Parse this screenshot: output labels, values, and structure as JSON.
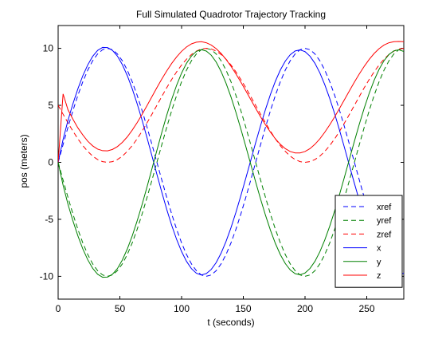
{
  "chart_data": {
    "type": "line",
    "title": "Full Simulated Quadrotor Trajectory Tracking",
    "xlabel": "t (seconds)",
    "ylabel": "pos (meters)",
    "xlim": [
      0,
      280
    ],
    "ylim": [
      -12,
      12
    ],
    "xticks": [
      0,
      50,
      100,
      150,
      200,
      250
    ],
    "yticks": [
      -10,
      -5,
      0,
      5,
      10
    ],
    "xtick_labels": [
      "0",
      "50",
      "100",
      "150",
      "200",
      "250"
    ],
    "ytick_labels": [
      "-10",
      "-5",
      "0",
      "5",
      "10"
    ],
    "grid": false,
    "legend_position": "bottom-right",
    "x": [
      0,
      4,
      8,
      12,
      16,
      20,
      24,
      28,
      32,
      36,
      40,
      44,
      48,
      52,
      56,
      60,
      64,
      68,
      72,
      76,
      80,
      84,
      88,
      92,
      96,
      100,
      104,
      108,
      112,
      116,
      120,
      124,
      128,
      132,
      136,
      140,
      144,
      148,
      152,
      156,
      160,
      164,
      168,
      172,
      176,
      180,
      184,
      188,
      192,
      196,
      200,
      204,
      208,
      212,
      216,
      220,
      224,
      228,
      232,
      236,
      240,
      244,
      248,
      252,
      256,
      260,
      264,
      268,
      272,
      276,
      280
    ],
    "series": [
      {
        "name": "xref",
        "color": "#0000ff",
        "dash": "dashed",
        "values": [
          0.0,
          1.56,
          3.09,
          4.54,
          5.88,
          7.07,
          8.09,
          8.91,
          9.51,
          9.88,
          10.0,
          9.88,
          9.51,
          8.91,
          8.09,
          7.07,
          5.88,
          4.54,
          3.09,
          1.56,
          0.0,
          -1.56,
          -3.09,
          -4.54,
          -5.88,
          -7.07,
          -8.09,
          -8.91,
          -9.51,
          -9.88,
          -10.0,
          -9.88,
          -9.51,
          -8.91,
          -8.09,
          -7.07,
          -5.88,
          -4.54,
          -3.09,
          -1.56,
          0.0,
          1.56,
          3.09,
          4.54,
          5.88,
          7.07,
          8.09,
          8.91,
          9.51,
          9.88,
          10.0,
          9.88,
          9.51,
          8.91,
          8.09,
          7.07,
          5.88,
          4.54,
          3.09,
          1.56,
          0.0,
          -1.56,
          -3.09,
          -4.54,
          -5.88,
          -7.07,
          -8.09,
          -8.91,
          -9.51,
          -9.88,
          -10.0
        ]
      },
      {
        "name": "yref",
        "color": "#008000",
        "dash": "dashed",
        "values": [
          0.0,
          -1.56,
          -3.09,
          -4.54,
          -5.88,
          -7.07,
          -8.09,
          -8.91,
          -9.51,
          -9.88,
          -10.0,
          -9.88,
          -9.51,
          -8.91,
          -8.09,
          -7.07,
          -5.88,
          -4.54,
          -3.09,
          -1.56,
          0.0,
          1.56,
          3.09,
          4.54,
          5.88,
          7.07,
          8.09,
          8.91,
          9.51,
          9.88,
          10.0,
          9.88,
          9.51,
          8.91,
          8.09,
          7.07,
          5.88,
          4.54,
          3.09,
          1.56,
          0.0,
          -1.56,
          -3.09,
          -4.54,
          -5.88,
          -7.07,
          -8.09,
          -8.91,
          -9.51,
          -9.88,
          -10.0,
          -9.88,
          -9.51,
          -8.91,
          -8.09,
          -7.07,
          -5.88,
          -4.54,
          -3.09,
          -1.56,
          0.0,
          1.56,
          3.09,
          4.54,
          5.88,
          7.07,
          8.09,
          8.91,
          9.51,
          9.88,
          10.0
        ]
      },
      {
        "name": "zref",
        "color": "#ff0000",
        "dash": "dashed",
        "values": [
          5.0,
          4.22,
          3.46,
          2.73,
          2.06,
          1.46,
          0.96,
          0.54,
          0.24,
          0.06,
          0.0,
          0.06,
          0.24,
          0.54,
          0.96,
          1.46,
          2.06,
          2.73,
          3.46,
          4.22,
          5.0,
          5.78,
          6.55,
          7.27,
          7.94,
          8.54,
          9.05,
          9.46,
          9.76,
          9.94,
          10.0,
          9.94,
          9.76,
          9.46,
          9.05,
          8.54,
          7.94,
          7.27,
          6.55,
          5.78,
          5.0,
          4.22,
          3.46,
          2.73,
          2.06,
          1.46,
          0.96,
          0.54,
          0.24,
          0.06,
          0.0,
          0.06,
          0.24,
          0.54,
          0.96,
          1.46,
          2.06,
          2.73,
          3.46,
          4.22,
          5.0,
          5.78,
          6.55,
          7.27,
          7.94,
          8.54,
          9.05,
          9.46,
          9.76,
          9.94,
          10.0
        ]
      },
      {
        "name": "x",
        "color": "#0000ff",
        "dash": "solid",
        "values": [
          0.0,
          2.0,
          3.69,
          5.14,
          6.45,
          7.6,
          8.55,
          9.3,
          9.82,
          10.08,
          10.07,
          9.82,
          9.32,
          8.57,
          7.61,
          6.46,
          5.14,
          3.7,
          2.16,
          0.56,
          -1.05,
          -2.63,
          -4.14,
          -5.53,
          -6.77,
          -7.83,
          -8.69,
          -9.33,
          -9.73,
          -9.88,
          -9.76,
          -9.4,
          -8.8,
          -7.97,
          -6.94,
          -5.74,
          -4.39,
          -2.93,
          -1.4,
          0.16,
          1.72,
          3.23,
          4.65,
          5.96,
          7.12,
          8.1,
          8.88,
          9.44,
          9.77,
          9.86,
          9.71,
          9.31,
          8.69,
          7.85,
          6.81,
          5.6,
          4.26,
          2.8,
          1.27,
          -0.3,
          -1.85,
          -3.36,
          -4.77,
          -6.06,
          -7.2,
          -8.16,
          -8.92,
          -9.46,
          -9.78,
          -9.87,
          -9.72
        ]
      },
      {
        "name": "y",
        "color": "#008000",
        "dash": "solid",
        "values": [
          0.0,
          -2.0,
          -3.69,
          -5.14,
          -6.45,
          -7.6,
          -8.55,
          -9.3,
          -9.82,
          -10.08,
          -10.07,
          -9.82,
          -9.32,
          -8.57,
          -7.61,
          -6.46,
          -5.14,
          -3.7,
          -2.16,
          -0.56,
          1.05,
          2.63,
          4.14,
          5.53,
          6.77,
          7.83,
          8.69,
          9.33,
          9.73,
          9.88,
          9.76,
          9.4,
          8.8,
          7.97,
          6.94,
          5.74,
          4.39,
          2.93,
          1.4,
          -0.16,
          -1.72,
          -3.23,
          -4.65,
          -5.96,
          -7.12,
          -8.1,
          -8.88,
          -9.44,
          -9.77,
          -9.86,
          -9.71,
          -9.31,
          -8.69,
          -7.85,
          -6.81,
          -5.6,
          -4.26,
          -2.8,
          -1.27,
          0.3,
          1.85,
          3.36,
          4.77,
          6.06,
          7.2,
          8.16,
          8.92,
          9.46,
          9.78,
          9.87,
          9.72
        ]
      },
      {
        "name": "z",
        "color": "#ff0000",
        "dash": "solid",
        "values": [
          0.0,
          6.0,
          4.6,
          3.78,
          3.02,
          2.4,
          1.85,
          1.44,
          1.16,
          1.02,
          1.01,
          1.13,
          1.38,
          1.75,
          2.23,
          2.82,
          3.48,
          4.21,
          4.98,
          5.76,
          6.55,
          7.31,
          8.02,
          8.68,
          9.25,
          9.74,
          10.12,
          10.39,
          10.54,
          10.58,
          10.49,
          10.29,
          9.97,
          9.55,
          9.03,
          8.43,
          7.76,
          7.04,
          6.28,
          5.51,
          4.74,
          3.99,
          3.29,
          2.64,
          2.06,
          1.58,
          1.2,
          0.95,
          0.82,
          0.82,
          0.95,
          1.2,
          1.58,
          2.06,
          2.64,
          3.29,
          3.99,
          4.74,
          5.51,
          6.28,
          7.04,
          7.76,
          8.43,
          9.03,
          9.55,
          9.97,
          10.29,
          10.49,
          10.58,
          10.6,
          10.58
        ]
      }
    ]
  }
}
